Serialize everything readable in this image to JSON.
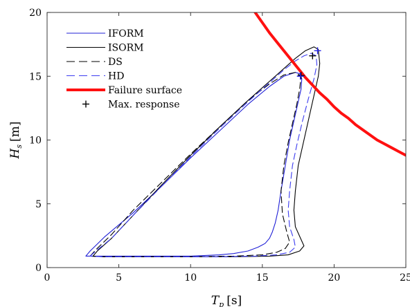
{
  "chart_data": {
    "type": "line",
    "xlabel": {
      "symbol": "T",
      "sub": "p",
      "unit": "[s]"
    },
    "ylabel": {
      "symbol": "H",
      "sub": "s",
      "unit": "[m]"
    },
    "xlim": [
      0,
      25
    ],
    "ylim": [
      0,
      20
    ],
    "xticks": [
      0,
      5,
      10,
      15,
      20,
      25
    ],
    "yticks": [
      0,
      5,
      10,
      15,
      20
    ],
    "grid": false,
    "legend_position": "top-left",
    "legend": [
      {
        "label": "IFORM",
        "color": "#1f1fd6",
        "style": "solid"
      },
      {
        "label": "ISORM",
        "color": "#000000",
        "style": "solid"
      },
      {
        "label": "DS",
        "color": "#000000",
        "style": "dashed"
      },
      {
        "label": "HD",
        "color": "#3b3bf0",
        "style": "dashed"
      },
      {
        "label": "Failure surface",
        "color": "#ff1010",
        "style": "thick"
      },
      {
        "label": "Max. response",
        "color": "#000000",
        "style": "marker-plus"
      }
    ],
    "series": [
      {
        "name": "IFORM",
        "color": "#1f1fd6",
        "style": "solid",
        "x": [
          2.7,
          3.0,
          4.0,
          6.0,
          8.0,
          10.0,
          12.0,
          14.0,
          15.5,
          16.5,
          17.3,
          17.6,
          17.75,
          17.7,
          17.5,
          17.2,
          16.9,
          16.6,
          16.3,
          16.1,
          15.9,
          15.7,
          15.5,
          15.2,
          14.7,
          14.0,
          13.0,
          12.0,
          10.0,
          8.0,
          6.0,
          4.0,
          3.0,
          2.7
        ],
        "y": [
          0.9,
          1.3,
          2.4,
          4.3,
          6.4,
          8.6,
          10.7,
          12.8,
          14.2,
          15.0,
          15.3,
          15.2,
          14.8,
          14.0,
          13.0,
          11.5,
          10.0,
          8.0,
          6.0,
          4.5,
          3.5,
          2.8,
          2.3,
          1.9,
          1.6,
          1.3,
          1.1,
          1.0,
          0.9,
          0.9,
          0.9,
          0.9,
          0.9,
          0.9
        ]
      },
      {
        "name": "ISORM",
        "color": "#000000",
        "style": "solid",
        "x": [
          3.2,
          3.5,
          4.5,
          6.0,
          8.0,
          10.0,
          12.0,
          14.0,
          15.5,
          16.5,
          17.3,
          18.0,
          18.6,
          18.9,
          19.0,
          18.9,
          18.6,
          18.2,
          17.8,
          17.5,
          17.3,
          17.2,
          17.3,
          17.7,
          17.9,
          17.6,
          16.8,
          15.5,
          13.0,
          10.0,
          7.0,
          4.0,
          3.3,
          3.2
        ],
        "y": [
          0.9,
          1.3,
          2.3,
          4.1,
          6.5,
          8.8,
          11.0,
          13.1,
          14.6,
          15.6,
          16.4,
          17.0,
          17.3,
          17.1,
          16.0,
          15.0,
          13.5,
          11.5,
          9.5,
          8.0,
          6.0,
          4.5,
          3.2,
          2.2,
          1.7,
          1.3,
          1.0,
          0.9,
          0.85,
          0.85,
          0.85,
          0.85,
          0.88,
          0.9
        ]
      },
      {
        "name": "DS",
        "color": "#000000",
        "style": "dashed",
        "x": [
          3.0,
          3.4,
          4.5,
          6.0,
          8.0,
          10.0,
          12.0,
          14.0,
          15.5,
          16.5,
          17.3,
          17.7,
          17.6,
          17.4,
          17.1,
          16.8,
          16.5,
          16.3,
          16.4,
          16.7,
          16.9,
          16.6,
          16.0,
          15.0,
          13.0,
          10.0,
          7.0,
          4.0,
          3.2,
          3.0
        ],
        "y": [
          0.9,
          1.4,
          2.6,
          4.5,
          6.7,
          8.9,
          11.0,
          13.1,
          14.4,
          15.1,
          15.3,
          15.0,
          14.0,
          12.8,
          11.3,
          9.8,
          8.0,
          6.0,
          4.2,
          2.8,
          2.0,
          1.5,
          1.2,
          1.0,
          0.9,
          0.85,
          0.85,
          0.85,
          0.88,
          0.9
        ]
      },
      {
        "name": "HD",
        "color": "#3b3bf0",
        "style": "dashed",
        "x": [
          3.0,
          3.4,
          4.5,
          6.0,
          8.0,
          10.0,
          12.0,
          14.0,
          15.5,
          16.5,
          17.3,
          17.9,
          18.4,
          18.75,
          18.8,
          18.6,
          18.2,
          17.8,
          17.4,
          17.1,
          16.9,
          16.8,
          16.9,
          17.2,
          17.3,
          16.9,
          16.0,
          14.5,
          12.0,
          9.0,
          6.0,
          4.0,
          3.2,
          3.0
        ],
        "y": [
          0.9,
          1.3,
          2.3,
          4.1,
          6.4,
          8.7,
          10.9,
          13.0,
          14.5,
          15.5,
          16.2,
          16.6,
          16.8,
          16.6,
          15.9,
          14.8,
          13.2,
          11.5,
          9.6,
          8.0,
          6.0,
          4.5,
          3.2,
          2.2,
          1.6,
          1.2,
          1.0,
          0.9,
          0.85,
          0.85,
          0.85,
          0.85,
          0.88,
          0.9
        ]
      },
      {
        "name": "Failure surface",
        "color": "#ff1010",
        "style": "thick",
        "x": [
          14.5,
          15.0,
          15.5,
          16.0,
          16.5,
          17.0,
          17.5,
          18.0,
          18.5,
          19.0,
          19.5,
          20.0,
          20.5,
          21.0,
          21.5,
          22.0,
          22.5,
          23.0,
          23.5,
          24.0,
          24.5,
          25.0
        ],
        "y": [
          20.0,
          19.2,
          18.4,
          17.7,
          17.0,
          16.3,
          15.6,
          14.9,
          14.3,
          13.7,
          13.2,
          12.6,
          12.1,
          11.7,
          11.2,
          10.8,
          10.4,
          10.0,
          9.7,
          9.4,
          9.1,
          8.8
        ]
      }
    ],
    "max_response": [
      {
        "x": 18.5,
        "y": 16.6,
        "color": "#000000"
      },
      {
        "x": 17.7,
        "y": 15.05,
        "color": "#000000"
      },
      {
        "x": 18.85,
        "y": 17.0,
        "color": "#2525e8"
      },
      {
        "x": 17.65,
        "y": 15.0,
        "color": "#2525e8"
      }
    ]
  }
}
